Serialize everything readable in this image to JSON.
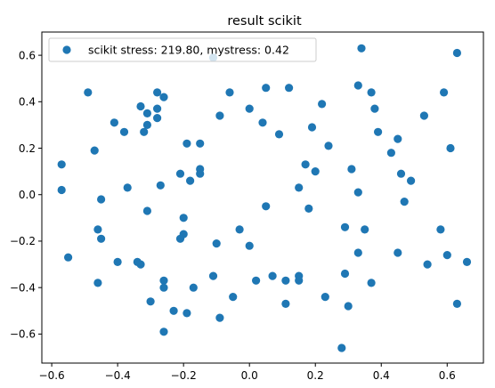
{
  "chart_data": {
    "type": "scatter",
    "title": "result scikit",
    "xlabel": "",
    "ylabel": "",
    "xlim": [
      -0.63,
      0.71
    ],
    "ylim": [
      -0.725,
      0.7
    ],
    "xticks": [
      -0.6,
      -0.4,
      -0.2,
      0.0,
      0.2,
      0.4,
      0.6
    ],
    "xtick_labels": [
      "−0.6",
      "−0.4",
      "−0.2",
      "0.0",
      "0.2",
      "0.4",
      "0.6"
    ],
    "yticks": [
      -0.6,
      -0.4,
      -0.2,
      0.0,
      0.2,
      0.4,
      0.6
    ],
    "ytick_labels": [
      "−0.6",
      "−0.4",
      "−0.2",
      "0.0",
      "0.2",
      "0.4",
      "0.6"
    ],
    "grid": false,
    "legend_position": "top-left",
    "series": [
      {
        "name": "scikit stress: 219.80, mystress: 0.42",
        "color": "#1f77b4",
        "points": [
          [
            -0.11,
            0.59
          ],
          [
            0.34,
            0.63
          ],
          [
            0.63,
            0.61
          ],
          [
            -0.49,
            0.44
          ],
          [
            -0.28,
            0.44
          ],
          [
            -0.26,
            0.42
          ],
          [
            -0.06,
            0.44
          ],
          [
            0.05,
            0.46
          ],
          [
            0.12,
            0.46
          ],
          [
            0.33,
            0.47
          ],
          [
            0.37,
            0.44
          ],
          [
            0.59,
            0.44
          ],
          [
            -0.33,
            0.38
          ],
          [
            -0.28,
            0.37
          ],
          [
            -0.31,
            0.35
          ],
          [
            -0.28,
            0.33
          ],
          [
            -0.09,
            0.34
          ],
          [
            0.0,
            0.37
          ],
          [
            0.22,
            0.39
          ],
          [
            0.38,
            0.37
          ],
          [
            0.53,
            0.34
          ],
          [
            -0.41,
            0.31
          ],
          [
            -0.38,
            0.27
          ],
          [
            -0.31,
            0.3
          ],
          [
            -0.32,
            0.27
          ],
          [
            0.04,
            0.31
          ],
          [
            0.09,
            0.26
          ],
          [
            0.19,
            0.29
          ],
          [
            0.39,
            0.27
          ],
          [
            -0.47,
            0.19
          ],
          [
            -0.19,
            0.22
          ],
          [
            -0.15,
            0.22
          ],
          [
            0.24,
            0.21
          ],
          [
            0.45,
            0.24
          ],
          [
            0.61,
            0.2
          ],
          [
            0.43,
            0.18
          ],
          [
            -0.57,
            0.13
          ],
          [
            -0.15,
            0.11
          ],
          [
            -0.21,
            0.09
          ],
          [
            -0.15,
            0.09
          ],
          [
            -0.18,
            0.06
          ],
          [
            0.17,
            0.13
          ],
          [
            0.2,
            0.1
          ],
          [
            0.31,
            0.11
          ],
          [
            0.46,
            0.09
          ],
          [
            0.49,
            0.06
          ],
          [
            -0.57,
            0.02
          ],
          [
            -0.45,
            -0.02
          ],
          [
            -0.37,
            0.03
          ],
          [
            -0.27,
            0.04
          ],
          [
            0.15,
            0.03
          ],
          [
            0.33,
            0.01
          ],
          [
            0.47,
            -0.03
          ],
          [
            -0.31,
            -0.07
          ],
          [
            -0.2,
            -0.1
          ],
          [
            0.05,
            -0.05
          ],
          [
            0.18,
            -0.06
          ],
          [
            -0.46,
            -0.15
          ],
          [
            -0.45,
            -0.19
          ],
          [
            -0.2,
            -0.17
          ],
          [
            -0.21,
            -0.19
          ],
          [
            -0.1,
            -0.21
          ],
          [
            -0.03,
            -0.15
          ],
          [
            0.0,
            -0.22
          ],
          [
            0.29,
            -0.14
          ],
          [
            0.35,
            -0.15
          ],
          [
            0.58,
            -0.15
          ],
          [
            -0.55,
            -0.27
          ],
          [
            -0.4,
            -0.29
          ],
          [
            -0.34,
            -0.29
          ],
          [
            -0.33,
            -0.3
          ],
          [
            0.33,
            -0.25
          ],
          [
            0.45,
            -0.25
          ],
          [
            0.54,
            -0.3
          ],
          [
            0.6,
            -0.26
          ],
          [
            0.66,
            -0.29
          ],
          [
            -0.46,
            -0.38
          ],
          [
            -0.26,
            -0.37
          ],
          [
            -0.26,
            -0.4
          ],
          [
            -0.17,
            -0.4
          ],
          [
            -0.11,
            -0.35
          ],
          [
            0.02,
            -0.37
          ],
          [
            0.07,
            -0.35
          ],
          [
            0.11,
            -0.37
          ],
          [
            0.15,
            -0.35
          ],
          [
            0.15,
            -0.37
          ],
          [
            0.29,
            -0.34
          ],
          [
            0.37,
            -0.38
          ],
          [
            -0.3,
            -0.46
          ],
          [
            -0.23,
            -0.5
          ],
          [
            -0.19,
            -0.51
          ],
          [
            -0.05,
            -0.44
          ],
          [
            -0.09,
            -0.53
          ],
          [
            0.11,
            -0.47
          ],
          [
            0.23,
            -0.44
          ],
          [
            0.3,
            -0.48
          ],
          [
            0.63,
            -0.47
          ],
          [
            -0.26,
            -0.59
          ],
          [
            0.28,
            -0.66
          ]
        ]
      }
    ]
  }
}
